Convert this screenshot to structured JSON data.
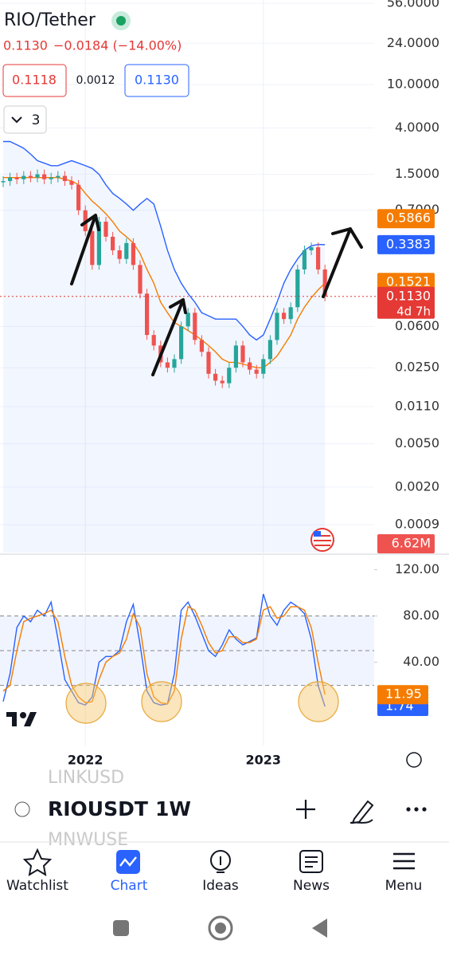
{
  "header": {
    "symbol": "RIO/Tether",
    "last": "0.1130",
    "change": "−0.0184 (−14.00%)",
    "bid": "0.1118",
    "spread": "0.0012",
    "ask": "0.1130",
    "indicator_count": "3"
  },
  "chart_data": [
    {
      "type": "candlestick",
      "log_scale": true,
      "categories": [
        null,
        null,
        null,
        null,
        null,
        null,
        null,
        null,
        null,
        null,
        null,
        null,
        "2022",
        null,
        null,
        null,
        null,
        null,
        null,
        null,
        null,
        null,
        null,
        null,
        null,
        null,
        null,
        null,
        null,
        null,
        null,
        null,
        null,
        null,
        null,
        null,
        null,
        null,
        "2023",
        null,
        null,
        null,
        null,
        null,
        null,
        null,
        null,
        null
      ],
      "series": [
        {
          "type": "candlestick",
          "color": "#26a69a",
          "down_color": "#ef5350",
          "values": [
            1.3,
            1.4,
            1.35,
            1.45,
            1.4,
            1.5,
            1.35,
            1.4,
            1.45,
            1.3,
            1.2,
            0.7,
            0.45,
            0.22,
            0.55,
            0.4,
            0.3,
            0.25,
            0.35,
            0.22,
            0.12,
            0.05,
            0.04,
            0.028,
            0.025,
            0.03,
            0.06,
            0.08,
            0.045,
            0.035,
            0.022,
            0.019,
            0.018,
            0.025,
            0.04,
            0.028,
            0.024,
            0.022,
            0.03,
            0.045,
            0.08,
            0.07,
            0.09,
            0.2,
            0.3,
            0.32,
            0.2,
            0.113
          ]
        },
        {
          "type": "line",
          "color": "#f57c00",
          "values": [
            1.4,
            1.4,
            1.4,
            1.4,
            1.4,
            1.4,
            1.4,
            1.4,
            1.4,
            1.35,
            1.3,
            1.2,
            1.0,
            0.85,
            0.75,
            0.65,
            0.55,
            0.45,
            0.4,
            0.35,
            0.28,
            0.2,
            0.15,
            0.1,
            0.08,
            0.065,
            0.06,
            0.055,
            0.05,
            0.045,
            0.04,
            0.035,
            0.03,
            0.028,
            0.028,
            0.027,
            0.026,
            0.025,
            0.025,
            0.028,
            0.032,
            0.04,
            0.05,
            0.07,
            0.09,
            0.11,
            0.13,
            0.15
          ]
        },
        {
          "type": "line",
          "color": "#2962ff",
          "values": [
            3,
            3,
            2.8,
            2.6,
            2.3,
            2,
            1.9,
            1.8,
            1.8,
            1.9,
            2,
            1.9,
            1.8,
            1.7,
            1.5,
            1.2,
            1,
            0.9,
            0.8,
            0.7,
            0.8,
            0.9,
            0.8,
            0.5,
            0.3,
            0.2,
            0.15,
            0.12,
            0.1,
            0.08,
            0.075,
            0.07,
            0.07,
            0.07,
            0.07,
            0.06,
            0.05,
            0.045,
            0.05,
            0.07,
            0.1,
            0.15,
            0.2,
            0.25,
            0.3,
            0.33,
            0.34,
            0.338
          ]
        }
      ],
      "ylim": [
        0.0005,
        60
      ],
      "yticks": [
        {
          "value": 56,
          "label": "56.0000"
        },
        {
          "value": 24,
          "label": "24.0000"
        },
        {
          "value": 10,
          "label": "10.0000"
        },
        {
          "value": 4,
          "label": "4.0000"
        },
        {
          "value": 1.5,
          "label": "1.5000"
        },
        {
          "value": 0.7,
          "label": "0.7000"
        },
        {
          "value": 0.06,
          "label": "0.0600"
        },
        {
          "value": 0.025,
          "label": "0.0250"
        },
        {
          "value": 0.011,
          "label": "0.0110"
        },
        {
          "value": 0.005,
          "label": "0.0050"
        },
        {
          "value": 0.002,
          "label": "0.0020"
        },
        {
          "value": 0.0009,
          "label": "0.0009"
        }
      ],
      "price_tags": [
        {
          "value": 0.5866,
          "label": "0.5866",
          "color": "#f57c00"
        },
        {
          "value": 0.3383,
          "label": "0.3383",
          "color": "#2962ff"
        },
        {
          "value": 0.1521,
          "label": "0.1521",
          "color": "#f57c00"
        },
        {
          "value": 0.113,
          "label": "0.1130",
          "color": "#e53935"
        }
      ],
      "countdown": "4d 7h",
      "volume_tag": "6.62M"
    },
    {
      "type": "line",
      "series": [
        {
          "color": "#2962ff",
          "values": [
            6,
            30,
            70,
            80,
            75,
            85,
            80,
            92,
            60,
            25,
            15,
            5,
            3,
            10,
            40,
            45,
            45,
            50,
            75,
            90,
            55,
            15,
            5,
            3,
            4,
            30,
            85,
            92,
            80,
            65,
            50,
            45,
            55,
            68,
            60,
            55,
            58,
            61,
            99,
            80,
            72,
            85,
            92,
            88,
            82,
            60,
            20,
            1.74
          ]
        },
        {
          "color": "#f57c00",
          "values": [
            15,
            20,
            50,
            75,
            78,
            80,
            82,
            85,
            75,
            45,
            20,
            10,
            5,
            6,
            25,
            40,
            45,
            48,
            60,
            82,
            70,
            30,
            10,
            5,
            4,
            15,
            60,
            88,
            85,
            72,
            57,
            48,
            50,
            62,
            62,
            57,
            57,
            60,
            85,
            88,
            78,
            80,
            88,
            88,
            85,
            70,
            40,
            11.95
          ]
        }
      ],
      "ylim": [
        -32,
        130
      ],
      "yticks": [
        {
          "value": 120,
          "label": "120.00"
        },
        {
          "value": 80,
          "label": "80.00"
        },
        {
          "value": 40,
          "label": "40.00"
        }
      ],
      "levels": [
        20,
        50,
        80
      ]
    }
  ],
  "toolbar": {
    "prev_symbol": "LINKUSD",
    "symbol": "RIOUSDT",
    "interval": "1W",
    "next_symbol": "MNWUSE"
  },
  "nav": [
    "Watchlist",
    "Chart",
    "Ideas",
    "News",
    "Menu"
  ]
}
